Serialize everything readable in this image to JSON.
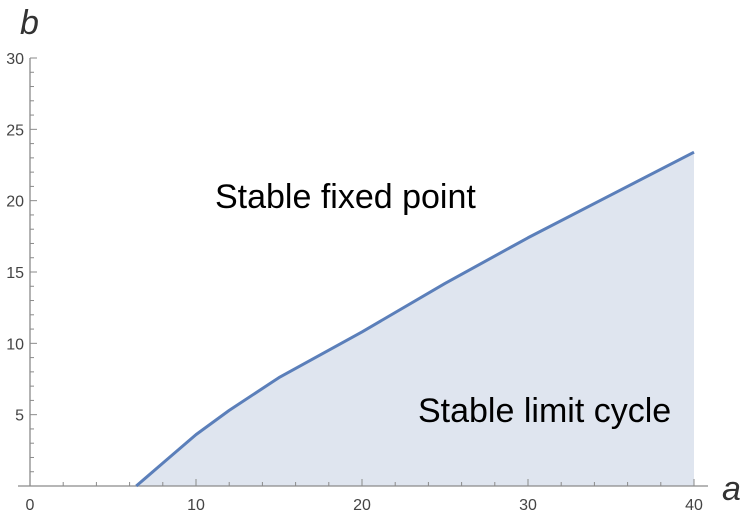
{
  "chart_data": {
    "type": "area",
    "title": "",
    "xlabel": "a",
    "ylabel": "b",
    "xlim": [
      0,
      40
    ],
    "ylim": [
      0,
      30
    ],
    "xticks": [
      0,
      10,
      20,
      30,
      40
    ],
    "yticks": [
      5,
      10,
      15,
      20,
      25,
      30
    ],
    "grid": false,
    "series": [
      {
        "x": [
          6.4,
          7,
          8,
          9,
          10,
          12,
          15,
          20,
          25,
          30,
          35,
          40
        ],
        "y": [
          0,
          0.6,
          1.6,
          2.6,
          3.6,
          5.3,
          7.6,
          10.8,
          14.2,
          17.4,
          20.4,
          23.4
        ],
        "fill": "below"
      }
    ],
    "annotations": [
      {
        "text": "Stable fixed point",
        "x": 19,
        "y": 19.5
      },
      {
        "text": "Stable limit cycle",
        "x": 31,
        "y": 4.5
      }
    ],
    "colors": {
      "line": "#5b7fba",
      "fill": "#dfe5ef",
      "axis": "#8a8a8a"
    }
  }
}
